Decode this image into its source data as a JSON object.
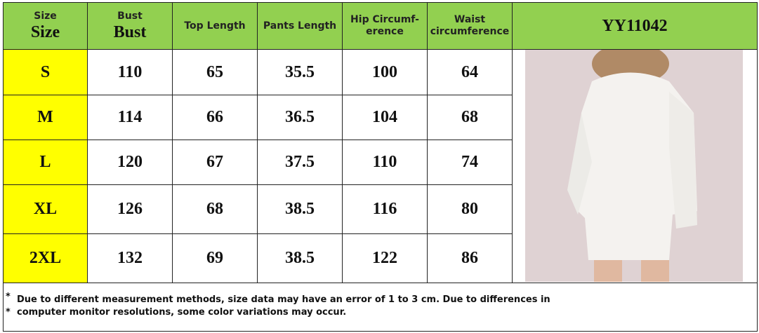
{
  "header": {
    "size": [
      "Size",
      "Size"
    ],
    "bust": [
      "Bust",
      "Bust"
    ],
    "top_length": "Top Length",
    "pants_length": "Pants Length",
    "hip": [
      "Hip Circumf-",
      "erence"
    ],
    "waist": [
      "Waist",
      "circumference"
    ],
    "model": "YY11042"
  },
  "table": {
    "rows": [
      [
        "S",
        110,
        65,
        35.5,
        100,
        64
      ],
      [
        "M",
        114,
        66,
        36.5,
        104,
        68
      ],
      [
        "L",
        120,
        67,
        37.5,
        110,
        74
      ],
      [
        "XL",
        126,
        68,
        38.5,
        116,
        80
      ],
      [
        "2XL",
        132,
        69,
        38.5,
        122,
        86
      ]
    ]
  },
  "notes": [
    {
      "marker": "*",
      "text": "Due to different measurement methods, size data may have an error of 1 to 3 cm. Due to differences in"
    },
    {
      "marker": "*",
      "text": "computer monitor resolutions, some color variations may occur."
    }
  ]
}
